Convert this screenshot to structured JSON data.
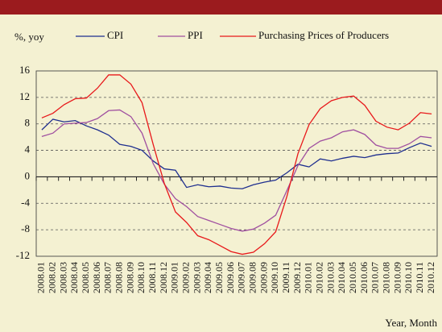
{
  "chart_data": {
    "type": "line",
    "y_label": "%, yoy",
    "x_label": "Year, Month",
    "categories": [
      "2008.01",
      "2008.02",
      "2008.03",
      "2008.04",
      "2008.05",
      "2008.06",
      "2008.07",
      "2008.08",
      "2008.09",
      "2008.10",
      "2008.11",
      "2008.12",
      "2009.01",
      "2009.02",
      "2009.03",
      "2009.04",
      "2009.05",
      "2009.06",
      "2009.07",
      "2009.08",
      "2009.09",
      "2009.10",
      "2009.11",
      "2009.12",
      "2010.01",
      "2010.02",
      "2010.03",
      "2010.04",
      "2010.05",
      "2010.06",
      "2010.07",
      "2010.08",
      "2010.09",
      "2010.10",
      "2010.11",
      "2010.12"
    ],
    "series": [
      {
        "name": "CPI",
        "color": "#1f2f8f",
        "values": [
          7.1,
          8.7,
          8.3,
          8.5,
          7.7,
          7.1,
          6.3,
          4.9,
          4.6,
          4.0,
          2.4,
          1.2,
          1.0,
          -1.6,
          -1.2,
          -1.5,
          -1.4,
          -1.7,
          -1.8,
          -1.2,
          -0.8,
          -0.5,
          0.6,
          1.9,
          1.5,
          2.7,
          2.4,
          2.8,
          3.1,
          2.9,
          3.3,
          3.5,
          3.6,
          4.4,
          5.1,
          4.6
        ]
      },
      {
        "name": "PPI",
        "color": "#a050a0",
        "values": [
          6.1,
          6.6,
          8.0,
          8.1,
          8.2,
          8.8,
          10.0,
          10.1,
          9.1,
          6.6,
          2.0,
          -1.1,
          -3.3,
          -4.5,
          -6.0,
          -6.6,
          -7.2,
          -7.8,
          -8.2,
          -7.9,
          -7.0,
          -5.8,
          -2.1,
          1.7,
          4.3,
          5.4,
          5.9,
          6.8,
          7.1,
          6.4,
          4.8,
          4.3,
          4.3,
          5.0,
          6.1,
          5.9
        ]
      },
      {
        "name": "Purchasing Prices of Producers",
        "color": "#e8191b",
        "values": [
          8.9,
          9.6,
          10.9,
          11.8,
          11.9,
          13.4,
          15.4,
          15.4,
          14.0,
          11.2,
          4.9,
          -1.0,
          -5.3,
          -6.9,
          -8.9,
          -9.5,
          -10.4,
          -11.3,
          -11.7,
          -11.4,
          -10.1,
          -8.3,
          -3.0,
          3.5,
          7.9,
          10.3,
          11.5,
          12.0,
          12.2,
          10.8,
          8.4,
          7.5,
          7.1,
          8.1,
          9.7,
          9.5
        ]
      }
    ],
    "ylim": [
      -12,
      16
    ],
    "yticks": [
      -12,
      -8,
      -4,
      0,
      4,
      8,
      12,
      16
    ],
    "grid": true
  }
}
